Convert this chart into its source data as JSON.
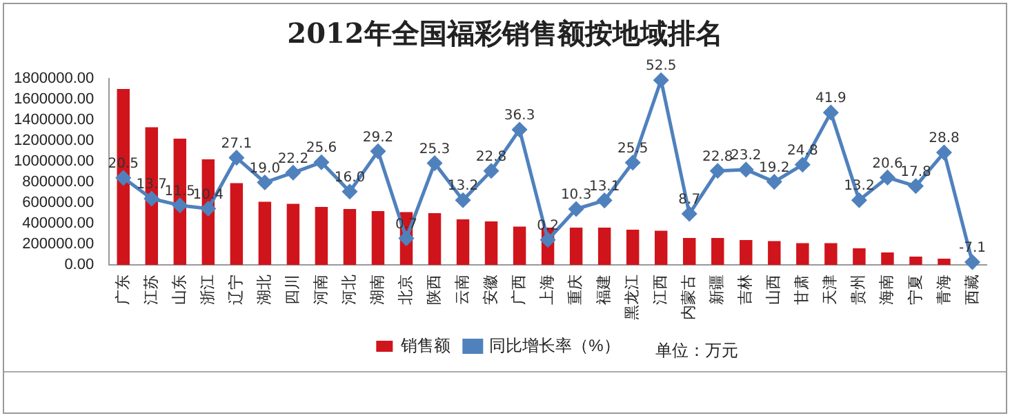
{
  "chart_data": {
    "type": "bar",
    "title": "2012年全国福彩销售额按地域排名",
    "categories": [
      "广东",
      "江苏",
      "山东",
      "浙江",
      "辽宁",
      "湖北",
      "四川",
      "河南",
      "河北",
      "湖南",
      "北京",
      "陕西",
      "云南",
      "安徽",
      "广西",
      "上海",
      "重庆",
      "福建",
      "黑龙江",
      "江西",
      "内蒙古",
      "新疆",
      "吉林",
      "山西",
      "甘肃",
      "天津",
      "贵州",
      "海南",
      "宁夏",
      "青海",
      "西藏"
    ],
    "series": [
      {
        "name": "销售额",
        "color": "#d0141c",
        "values": [
          1700000,
          1330000,
          1220000,
          1020000,
          790000,
          610000,
          590000,
          560000,
          540000,
          520000,
          510000,
          500000,
          440000,
          420000,
          370000,
          360000,
          360000,
          360000,
          340000,
          330000,
          260000,
          260000,
          240000,
          230000,
          210000,
          210000,
          160000,
          120000,
          80000,
          60000,
          null
        ]
      },
      {
        "name": "同比增长率（%）",
        "type": "line",
        "axis": "y2",
        "color": "#4f81bd",
        "marker": "diamond",
        "values": [
          20.5,
          13.7,
          11.5,
          10.4,
          27.1,
          19.0,
          22.2,
          25.6,
          16.0,
          29.2,
          0.7,
          25.3,
          13.2,
          22.8,
          36.3,
          0.2,
          10.3,
          13.1,
          25.5,
          52.5,
          8.7,
          22.8,
          23.2,
          19.2,
          24.8,
          41.9,
          13.2,
          20.6,
          17.8,
          28.8,
          -7.1
        ],
        "value_labels": [
          "20.5",
          "13.7",
          "11.5",
          "10.4",
          "27.1",
          "19.0",
          "22.2",
          "25.6",
          "16.0",
          "29.2",
          "0.7",
          "25.3",
          "13.2",
          "22.8",
          "36.3",
          "0.2",
          "10.3",
          "13.1",
          "25.5",
          "52.5",
          "8.7",
          "22.8",
          "23.2",
          "19.2",
          "24.8",
          "41.9",
          "13.2",
          "20.6",
          "17.8",
          "28.8",
          "-7.1"
        ]
      }
    ],
    "ylim": [
      0,
      1800000
    ],
    "yticks": [
      {
        "value": 0,
        "label": "0.00"
      },
      {
        "value": 200000,
        "label": "200000.00"
      },
      {
        "value": 400000,
        "label": "400000.00"
      },
      {
        "value": 600000,
        "label": "600000.00"
      },
      {
        "value": 800000,
        "label": "800000.00"
      },
      {
        "value": 1000000,
        "label": "1000000.00"
      },
      {
        "value": 1200000,
        "label": "1200000.00"
      },
      {
        "value": 1400000,
        "label": "1400000.00"
      },
      {
        "value": 1600000,
        "label": "1600000.00"
      },
      {
        "value": 1800000,
        "label": "1800000.00"
      }
    ],
    "y2lim": [
      -8,
      53
    ],
    "grid": false,
    "legend": "bottom",
    "annotations": [
      "单位：万元"
    ]
  }
}
